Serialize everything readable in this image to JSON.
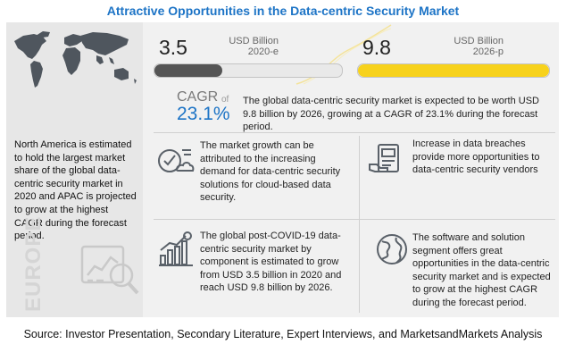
{
  "title": "Attractive Opportunities in the Data-centric Security Market",
  "left": {
    "text": "North America  is estimated to hold the largest market share of the global data-centric security market in 2020 and APAC is projected to grow at the highest CAGR during the forecast period.",
    "watermark": "EUROPE"
  },
  "kpis": [
    {
      "value": "3.5",
      "unit_line1": "USD Billion",
      "unit_line2": "2020-e",
      "fill_fraction": 0.36,
      "color": "#555555"
    },
    {
      "value": "9.8",
      "unit_line1": "USD Billion",
      "unit_line2": "2026-p",
      "fill_fraction": 1.0,
      "color": "#f7d21c"
    }
  ],
  "cagr": {
    "label": "CAGR",
    "of": "of",
    "value": "23.1%",
    "text": "The global data-centric security market is expected to be worth USD 9.8 billion by 2026, growing at a CAGR of 23.1% during the forecast period."
  },
  "blocks": [
    {
      "icon": "cloud-security-icon",
      "text": "The market growth can be attributed to the increasing demand for data-centric security solutions for cloud-based data security."
    },
    {
      "icon": "data-breach-icon",
      "text": "Increase in data breaches provide more opportunities to data-centric security vendors"
    },
    {
      "icon": "growth-chart-icon",
      "text": "The global post-COVID-19 data-centric security market by component is estimated to grow from USD 3.5 billion in 2020 and reach USD 9.8 billion by 2026."
    },
    {
      "icon": "globe-icon",
      "text": "The software and solution segment offers great opportunities in the data-centric security market and is expected to grow at the highest CAGR during the forecast period."
    }
  ],
  "footer": "Source: Investor Presentation, Secondary Literature, Expert Interviews, and MarketsandMarkets Analysis"
}
